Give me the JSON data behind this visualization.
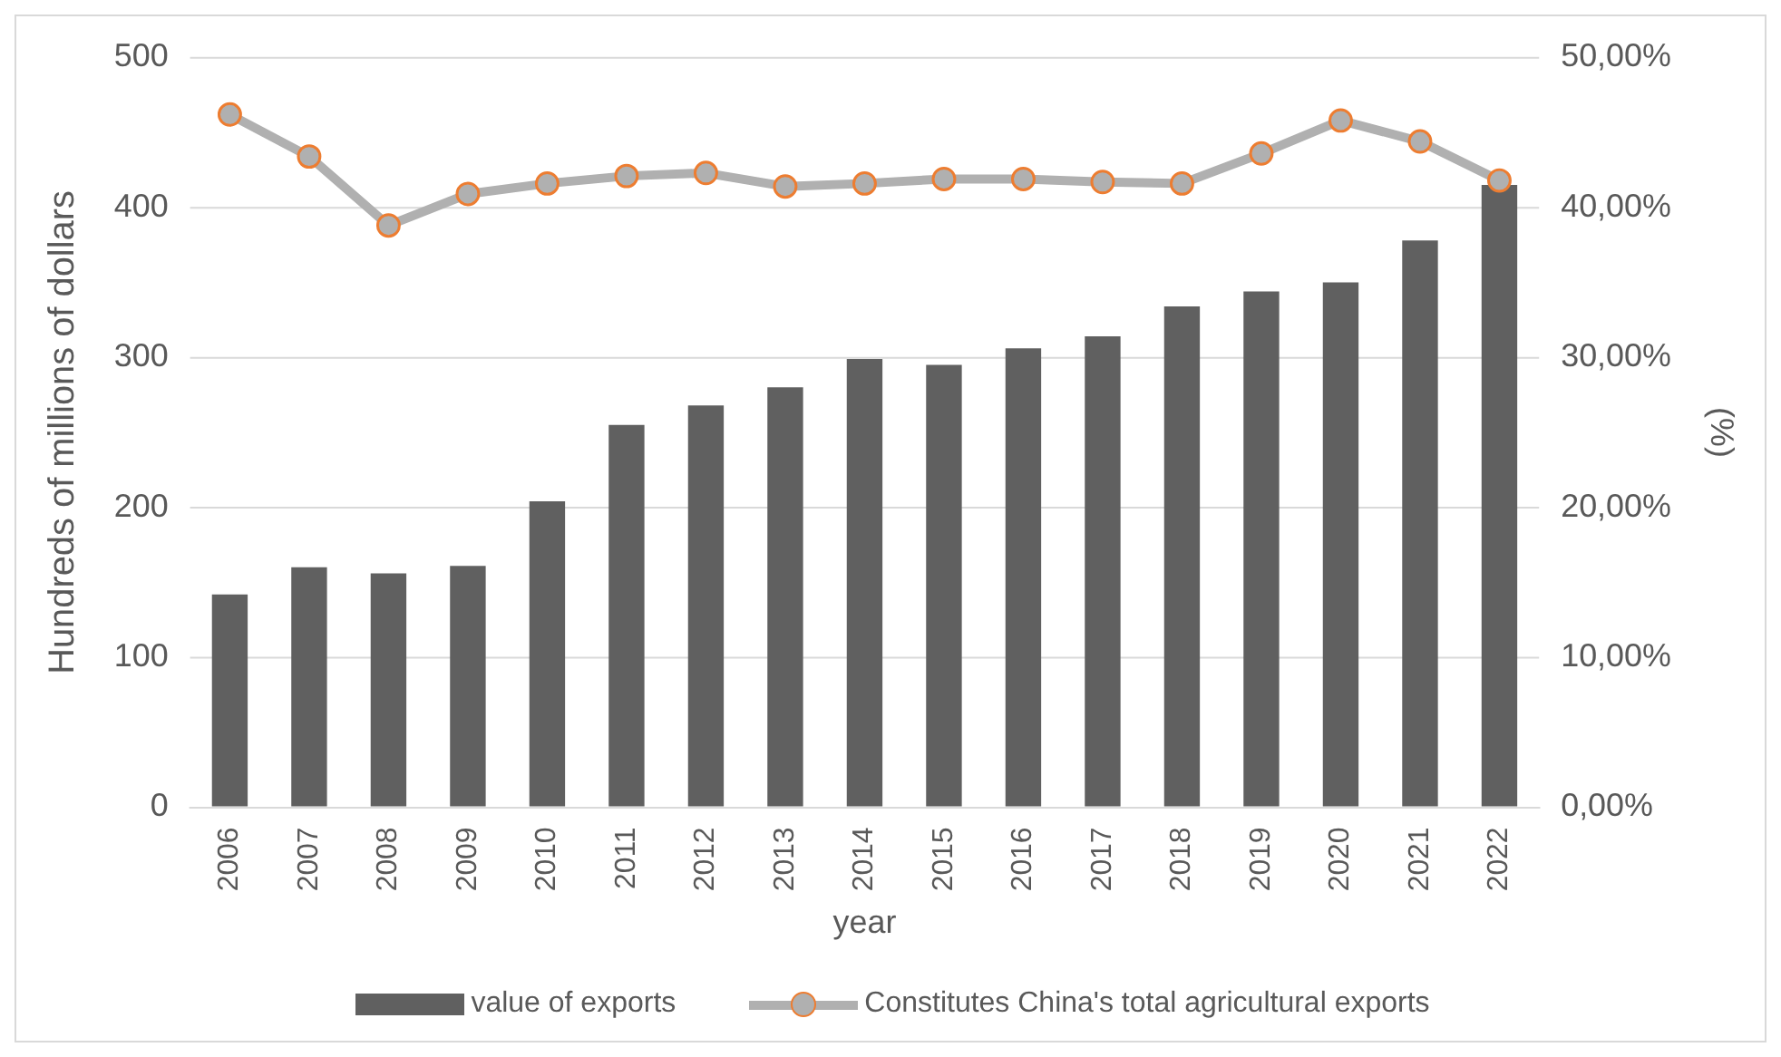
{
  "chart_data": {
    "type": "bar",
    "xlabel": "year",
    "ylabel": "Hundreds of millions of dollars",
    "y2label": "(%)",
    "categories": [
      "2006",
      "2007",
      "2008",
      "2009",
      "2010",
      "2011",
      "2012",
      "2013",
      "2014",
      "2015",
      "2016",
      "2017",
      "2018",
      "2019",
      "2020",
      "2021",
      "2022"
    ],
    "series": [
      {
        "name": "value of exports",
        "color": "#606060",
        "values": [
          142,
          160,
          156,
          161,
          204,
          255,
          268,
          280,
          299,
          295,
          306,
          314,
          334,
          344,
          350,
          378,
          415
        ]
      },
      {
        "name": "Constitutes China's total agricultural exports",
        "type": "line",
        "axis": "y2",
        "color": "#b0b0b0",
        "marker": "circle",
        "values": [
          46.2,
          43.4,
          38.8,
          40.9,
          41.6,
          42.1,
          42.3,
          41.4,
          41.6,
          41.9,
          41.9,
          41.7,
          41.6,
          43.6,
          45.8,
          44.4,
          41.8
        ]
      }
    ],
    "ylim": [
      0,
      500
    ],
    "yticks": [
      0,
      100,
      200,
      300,
      400,
      500
    ],
    "y2lim": [
      0,
      50
    ],
    "y2ticks": [
      {
        "value": 0,
        "label": "0,00%"
      },
      {
        "value": 10,
        "label": "10,00%"
      },
      {
        "value": 20,
        "label": "20,00%"
      },
      {
        "value": 30,
        "label": "30,00%"
      },
      {
        "value": 40,
        "label": "40,00%"
      },
      {
        "value": 50,
        "label": "50,00%"
      }
    ],
    "grid": "y",
    "legend": "bottom"
  }
}
